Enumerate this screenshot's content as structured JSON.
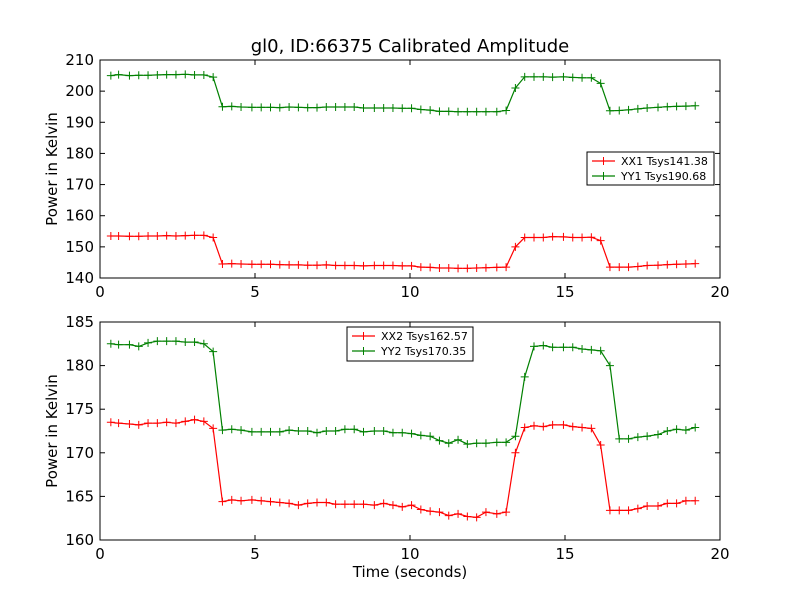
{
  "colors": {
    "red": "#ff0000",
    "green": "#008000",
    "axis": "#000000"
  },
  "chart_data": [
    {
      "type": "line",
      "title": "gl0, ID:66375 Calibrated Amplitude",
      "xlabel": "",
      "ylabel": "Power in Kelvin",
      "xlim": [
        0,
        20
      ],
      "ylim": [
        140,
        210
      ],
      "xticks": [
        0,
        5,
        10,
        15,
        20
      ],
      "yticks": [
        140,
        150,
        160,
        170,
        180,
        190,
        200,
        210
      ],
      "legend_position": "right",
      "x": [
        0.35,
        0.6,
        0.95,
        1.25,
        1.55,
        1.85,
        2.15,
        2.45,
        2.75,
        3.05,
        3.35,
        3.65,
        3.95,
        4.25,
        4.55,
        4.9,
        5.2,
        5.5,
        5.8,
        6.1,
        6.4,
        6.7,
        7.0,
        7.3,
        7.6,
        7.9,
        8.2,
        8.5,
        8.85,
        9.15,
        9.45,
        9.75,
        10.05,
        10.35,
        10.65,
        10.95,
        11.25,
        11.55,
        11.85,
        12.15,
        12.45,
        12.8,
        13.1,
        13.4,
        13.7,
        14.0,
        14.3,
        14.6,
        14.95,
        15.25,
        15.55,
        15.85,
        16.15,
        16.45,
        16.75,
        17.05,
        17.35,
        17.65,
        18.0,
        18.3,
        18.6,
        18.9,
        19.2
      ],
      "series": [
        {
          "name": "XX1 Tsys141.38",
          "color": "#ff0000",
          "values": [
            153.5,
            153.5,
            153.4,
            153.4,
            153.5,
            153.5,
            153.6,
            153.5,
            153.6,
            153.7,
            153.7,
            153.0,
            144.5,
            144.6,
            144.5,
            144.4,
            144.4,
            144.4,
            144.3,
            144.2,
            144.2,
            144.1,
            144.1,
            144.2,
            144.0,
            144.0,
            144.0,
            143.9,
            144.0,
            144.0,
            144.0,
            143.9,
            143.9,
            143.5,
            143.4,
            143.2,
            143.2,
            143.1,
            143.1,
            143.2,
            143.3,
            143.4,
            143.5,
            150.0,
            153.0,
            153.0,
            153.0,
            153.3,
            153.2,
            153.0,
            153.0,
            153.1,
            152.0,
            143.5,
            143.5,
            143.5,
            143.7,
            144.0,
            144.1,
            144.3,
            144.4,
            144.5,
            144.6
          ]
        },
        {
          "name": "YY1 Tsys190.68",
          "color": "#008000",
          "values": [
            205.0,
            205.3,
            205.0,
            205.1,
            205.1,
            205.2,
            205.3,
            205.3,
            205.4,
            205.2,
            205.2,
            204.5,
            195.0,
            195.1,
            194.9,
            194.8,
            194.8,
            194.8,
            194.7,
            194.9,
            194.8,
            194.7,
            194.7,
            194.9,
            194.9,
            194.9,
            194.9,
            194.6,
            194.6,
            194.6,
            194.6,
            194.5,
            194.5,
            194.1,
            193.9,
            193.5,
            193.5,
            193.4,
            193.4,
            193.4,
            193.4,
            193.4,
            193.8,
            201.0,
            204.6,
            204.6,
            204.6,
            204.5,
            204.6,
            204.4,
            204.3,
            204.3,
            202.5,
            193.7,
            193.8,
            194.0,
            194.3,
            194.6,
            194.8,
            195.0,
            195.1,
            195.2,
            195.3
          ]
        }
      ]
    },
    {
      "type": "line",
      "title": "",
      "xlabel": "Time (seconds)",
      "ylabel": "Power in Kelvin",
      "xlim": [
        0,
        20
      ],
      "ylim": [
        160,
        185
      ],
      "xticks": [
        0,
        5,
        10,
        15,
        20
      ],
      "yticks": [
        160,
        165,
        170,
        175,
        180,
        185
      ],
      "legend_position": "upper center",
      "x": [
        0.35,
        0.6,
        0.95,
        1.25,
        1.55,
        1.85,
        2.15,
        2.45,
        2.75,
        3.05,
        3.35,
        3.65,
        3.95,
        4.25,
        4.55,
        4.9,
        5.2,
        5.5,
        5.8,
        6.1,
        6.4,
        6.7,
        7.0,
        7.3,
        7.6,
        7.9,
        8.2,
        8.5,
        8.85,
        9.15,
        9.45,
        9.75,
        10.05,
        10.35,
        10.65,
        10.95,
        11.25,
        11.55,
        11.85,
        12.15,
        12.45,
        12.8,
        13.1,
        13.4,
        13.7,
        14.0,
        14.3,
        14.6,
        14.95,
        15.25,
        15.55,
        15.85,
        16.15,
        16.45,
        16.75,
        17.05,
        17.35,
        17.65,
        18.0,
        18.3,
        18.6,
        18.9,
        19.2
      ],
      "series": [
        {
          "name": "XX2 Tsys162.57",
          "color": "#ff0000",
          "values": [
            173.5,
            173.4,
            173.3,
            173.2,
            173.4,
            173.4,
            173.5,
            173.4,
            173.6,
            173.8,
            173.6,
            172.8,
            164.4,
            164.6,
            164.5,
            164.6,
            164.5,
            164.4,
            164.3,
            164.2,
            164.0,
            164.2,
            164.3,
            164.3,
            164.1,
            164.1,
            164.1,
            164.1,
            164.0,
            164.2,
            164.0,
            163.8,
            164.0,
            163.5,
            163.3,
            163.2,
            162.8,
            163.0,
            162.7,
            162.6,
            163.2,
            163.0,
            163.2,
            170.0,
            172.9,
            173.1,
            173.0,
            173.2,
            173.2,
            173.0,
            172.9,
            172.8,
            170.9,
            163.4,
            163.4,
            163.4,
            163.6,
            163.9,
            163.9,
            164.2,
            164.2,
            164.5,
            164.5
          ]
        },
        {
          "name": "YY2 Tsys170.35",
          "color": "#008000",
          "values": [
            182.5,
            182.4,
            182.4,
            182.2,
            182.6,
            182.8,
            182.8,
            182.8,
            182.7,
            182.7,
            182.5,
            181.6,
            172.6,
            172.7,
            172.6,
            172.4,
            172.4,
            172.4,
            172.4,
            172.6,
            172.5,
            172.5,
            172.3,
            172.5,
            172.5,
            172.7,
            172.7,
            172.4,
            172.5,
            172.5,
            172.3,
            172.3,
            172.2,
            172.0,
            171.9,
            171.4,
            171.1,
            171.5,
            171.0,
            171.1,
            171.1,
            171.2,
            171.2,
            171.9,
            178.7,
            182.2,
            182.3,
            182.1,
            182.1,
            182.1,
            181.9,
            181.8,
            181.7,
            180.0,
            171.6,
            171.6,
            171.8,
            171.9,
            172.1,
            172.5,
            172.7,
            172.6,
            172.9
          ]
        }
      ]
    }
  ]
}
